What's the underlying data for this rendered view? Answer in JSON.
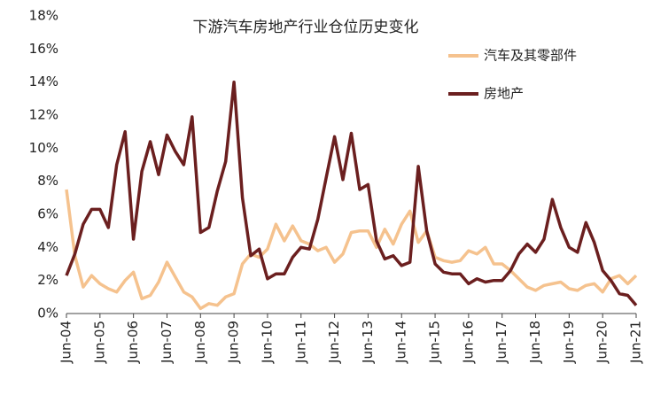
{
  "chart_data": {
    "type": "line",
    "title": "下游汽车房地产行业仓位历史变化",
    "categories": [
      "Jun-04",
      null,
      null,
      null,
      "Jun-05",
      null,
      null,
      null,
      "Jun-06",
      null,
      null,
      null,
      "Jun-07",
      null,
      null,
      null,
      "Jun-08",
      null,
      null,
      null,
      "Jun-09",
      null,
      null,
      null,
      "Jun-10",
      null,
      null,
      null,
      "Jun-11",
      null,
      null,
      null,
      "Jun-12",
      null,
      null,
      null,
      "Jun-13",
      null,
      null,
      null,
      "Jun-14",
      null,
      null,
      null,
      "Jun-15",
      null,
      null,
      null,
      "Jun-16",
      null,
      null,
      null,
      "Jun-17",
      null,
      null,
      null,
      "Jun-18",
      null,
      null,
      null,
      "Jun-19",
      null,
      null,
      null,
      "Jun-20",
      null,
      null,
      null,
      "Jun-21"
    ],
    "series": [
      {
        "name": "汽车及其零部件",
        "color": "#f5c28e",
        "values": [
          7.5,
          3.5,
          1.6,
          2.3,
          1.8,
          1.5,
          1.3,
          2.0,
          2.5,
          0.9,
          1.1,
          1.9,
          3.1,
          2.2,
          1.3,
          1.0,
          0.3,
          0.6,
          0.5,
          1.0,
          1.2,
          3.0,
          3.6,
          3.4,
          3.9,
          5.4,
          4.4,
          5.3,
          4.4,
          4.2,
          3.8,
          4.0,
          3.1,
          3.6,
          4.9,
          5.0,
          5.0,
          4.0,
          5.1,
          4.2,
          5.4,
          6.2,
          4.3,
          5.0,
          3.4,
          3.2,
          3.1,
          3.2,
          3.8,
          3.6,
          4.0,
          3.0,
          3.0,
          2.6,
          2.1,
          1.6,
          1.4,
          1.7,
          1.8,
          1.9,
          1.5,
          1.4,
          1.7,
          1.8,
          1.3,
          2.1,
          2.3,
          1.8,
          2.3
        ]
      },
      {
        "name": "房地产",
        "color": "#6b1f1f",
        "values": [
          2.3,
          3.6,
          5.4,
          6.3,
          6.3,
          5.2,
          9.0,
          11.0,
          4.5,
          8.6,
          10.4,
          8.4,
          10.8,
          9.8,
          9.0,
          11.9,
          4.9,
          5.2,
          7.4,
          9.2,
          14.0,
          7.0,
          3.5,
          3.9,
          2.1,
          2.4,
          2.4,
          3.4,
          4.0,
          3.9,
          5.7,
          8.2,
          10.7,
          8.1,
          10.9,
          7.5,
          7.8,
          4.4,
          3.3,
          3.5,
          2.9,
          3.1,
          8.9,
          5.0,
          3.0,
          2.5,
          2.4,
          2.4,
          1.8,
          2.1,
          1.9,
          2.0,
          2.0,
          2.6,
          3.6,
          4.2,
          3.7,
          4.5,
          6.9,
          5.2,
          4.0,
          3.7,
          5.5,
          4.3,
          2.6,
          2.0,
          1.2,
          1.1,
          0.5
        ]
      }
    ],
    "ylim": [
      0,
      18
    ],
    "yticks": [
      {
        "value": 0,
        "label": "0%"
      },
      {
        "value": 2,
        "label": "2%"
      },
      {
        "value": 4,
        "label": "4%"
      },
      {
        "value": 6,
        "label": "6%"
      },
      {
        "value": 8,
        "label": "8%"
      },
      {
        "value": 10,
        "label": "10%"
      },
      {
        "value": 12,
        "label": "12%"
      },
      {
        "value": 14,
        "label": "14%"
      },
      {
        "value": 16,
        "label": "16%"
      },
      {
        "value": 18,
        "label": "18%"
      }
    ],
    "grid": false
  }
}
